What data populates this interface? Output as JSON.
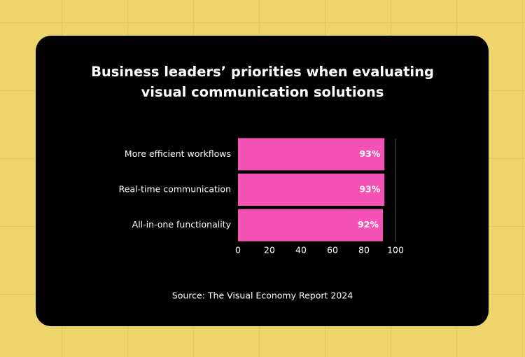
{
  "chart_data": {
    "type": "bar",
    "orientation": "horizontal",
    "title": "Business leaders’ priorities when evaluating visual communication solutions",
    "categories": [
      "More efficient workflows",
      "Real-time communication",
      "All-in-one functionality"
    ],
    "values": [
      93,
      93,
      92
    ],
    "value_labels": [
      "93%",
      "93%",
      "92%"
    ],
    "color": "#f452b4",
    "xlim": [
      0,
      100
    ],
    "xticks": [
      0,
      20,
      40,
      60,
      80,
      100
    ],
    "source": "Source: The Visual Economy Report 2024"
  }
}
